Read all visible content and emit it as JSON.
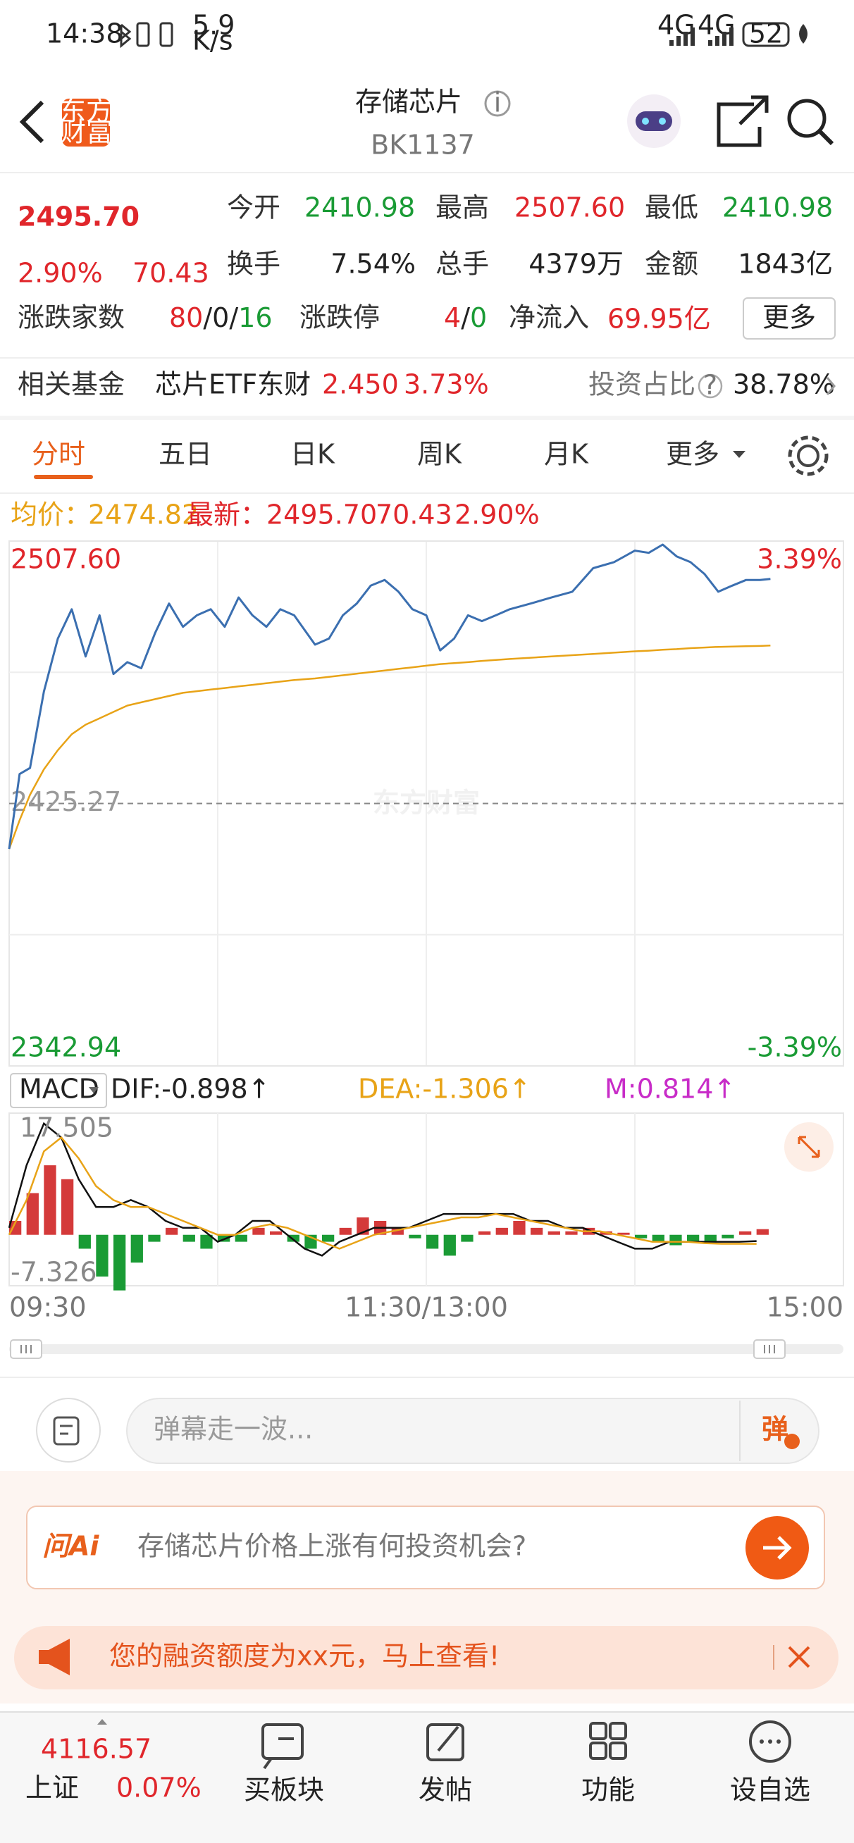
{
  "status_bar": {
    "time": "14:38",
    "net_speed": "5.9",
    "net_unit": "K/s",
    "signal_1": "4G",
    "signal_2": "4G",
    "battery": "52"
  },
  "header": {
    "logo_lines": [
      "东方",
      "财富"
    ],
    "title": "存储芯片",
    "code": "BK1137"
  },
  "quote": {
    "price": "2495.70",
    "change_pct": "2.90%",
    "change": "70.43",
    "fields": [
      {
        "label": "今开",
        "value": "2410.98"
      },
      {
        "label": "最高",
        "value": "2507.60"
      },
      {
        "label": "最低",
        "value": "2410.98"
      },
      {
        "label": "换手",
        "value": "7.54%"
      },
      {
        "label": "总手",
        "value": "4379万"
      },
      {
        "label": "金额",
        "value": "1843亿"
      }
    ],
    "breadth": {
      "label": "涨跌家数",
      "up": "80",
      "flat": "0",
      "down": "16"
    },
    "limit": {
      "label": "涨跌停",
      "up": "4",
      "down": "0"
    },
    "net_inflow": {
      "label": "净流入",
      "value": "69.95亿"
    },
    "more_button": "更多"
  },
  "fund": {
    "label": "相关基金",
    "name": "芯片ETF东财",
    "price": "2.450",
    "change": "3.73%",
    "ratio_label": "投资占比",
    "ratio": "38.78%"
  },
  "tabs": [
    "分时",
    "五日",
    "日K",
    "周K",
    "月K",
    "更多"
  ],
  "info": {
    "avg_label": "均价：",
    "avg": "2474.82",
    "latest_label": "最新：",
    "latest": "2495.70",
    "change": "70.43",
    "change_pct": "2.90%"
  },
  "watermark": "东方财富",
  "macd_header": {
    "selector": "MACD",
    "dif": "DIF:-0.898↑",
    "dea": "DEA:-1.306↑",
    "m": "M:0.814↑"
  },
  "chart_data": [
    {
      "type": "line",
      "x": [
        0,
        3,
        6,
        10,
        14,
        18,
        22,
        26,
        30,
        34,
        38,
        42,
        46,
        50,
        54,
        58,
        62,
        66,
        70,
        74,
        78,
        82,
        88,
        92,
        96,
        100,
        104,
        108,
        112,
        116,
        120,
        124,
        128,
        132,
        136,
        140,
        144,
        150,
        156,
        162,
        168,
        174,
        180,
        184,
        188,
        192,
        196,
        200,
        204,
        208,
        212,
        216,
        219
      ],
      "xlim": [
        0,
        240
      ],
      "xticks": [
        {
          "value": 0,
          "label": "09:30"
        },
        {
          "value": 120,
          "label": "11:30/13:00"
        },
        {
          "value": 240,
          "label": "15:00"
        }
      ],
      "ylim": [
        2342.94,
        2507.6
      ],
      "yticks": [
        2342.94,
        2425.27,
        {
          "value": 2507.6,
          "label": "2507.60"
        }
      ],
      "y2lim": [
        -3.39,
        3.39
      ],
      "y2ticks": [
        {
          "value": -3.39,
          "label": "-3.39%"
        },
        {
          "value": 3.39,
          "label": "3.39%"
        }
      ],
      "up_color": "#e0262b",
      "down_color": "#1a9b35",
      "flat_color": "#999999",
      "series": [
        {
          "color": "#3b6fb0",
          "values": [
            2411.0,
            2434.5,
            2436.4,
            2460.4,
            2477.0,
            2486.2,
            2471.4,
            2484.3,
            2465.9,
            2469.6,
            2467.7,
            2478.8,
            2488.0,
            2480.7,
            2484.3,
            2486.2,
            2480.7,
            2489.9,
            2484.3,
            2480.7,
            2486.2,
            2484.3,
            2475.1,
            2477.0,
            2484.3,
            2488.0,
            2493.6,
            2495.4,
            2491.7,
            2486.2,
            2484.3,
            2473.3,
            2477.0,
            2484.3,
            2482.5,
            2484.3,
            2486.2,
            2488.0,
            2489.9,
            2491.7,
            2499.1,
            2501.0,
            2504.6,
            2503.9,
            2506.5,
            2502.8,
            2501.0,
            2497.3,
            2491.7,
            2493.6,
            2495.4,
            2495.4,
            2495.7
          ]
        },
        {
          "color": "#e8a317",
          "values": [
            2411,
            2420,
            2428,
            2436,
            2442,
            2447,
            2450,
            2452,
            2454,
            2456,
            2457,
            2458,
            2459,
            2460,
            2460.5,
            2461,
            2461.5,
            2462,
            2462.5,
            2463,
            2463.5,
            2464,
            2464.5,
            2465,
            2465.5,
            2466,
            2466.5,
            2467,
            2467.5,
            2468,
            2468.5,
            2469,
            2469.3,
            2469.6,
            2470,
            2470.3,
            2470.6,
            2471,
            2471.4,
            2471.8,
            2472.2,
            2472.6,
            2473,
            2473.2,
            2473.5,
            2473.7,
            2474,
            2474.2,
            2474.4,
            2474.5,
            2474.6,
            2474.7,
            2474.82
          ]
        }
      ]
    },
    {
      "type": "macd",
      "x": [
        0,
        5,
        10,
        15,
        20,
        25,
        30,
        35,
        40,
        45,
        50,
        55,
        60,
        65,
        70,
        75,
        80,
        85,
        90,
        95,
        100,
        105,
        110,
        115,
        120,
        125,
        130,
        135,
        140,
        145,
        150,
        155,
        160,
        165,
        170,
        175,
        180,
        185,
        190,
        195,
        200,
        205,
        210,
        215
      ],
      "xlim": [
        0,
        240
      ],
      "ylim": [
        -7.326,
        17.505
      ],
      "yticks": [
        -7.326,
        17.505
      ],
      "histogram": {
        "up_color": "#d43a3a",
        "down_color": "#1a9b35",
        "values": [
          2,
          6,
          10,
          8,
          -2,
          -6,
          -8,
          -4,
          -1,
          1,
          -1,
          -2,
          -1,
          -1,
          1,
          0.5,
          -1,
          -2,
          -1,
          1,
          2.5,
          2,
          1,
          -0.5,
          -2,
          -3,
          -1,
          0.5,
          1,
          2,
          1,
          0.5,
          0.5,
          1,
          0.5,
          0.3,
          -0.5,
          -1,
          -1.5,
          -1,
          -1,
          -0.5,
          0.5,
          0.814
        ]
      },
      "series": [
        {
          "color": "#111111",
          "values": [
            1,
            10,
            16,
            14,
            8,
            4,
            4,
            5,
            4,
            2,
            1,
            1,
            -1,
            0,
            2,
            2,
            0,
            -2,
            -3,
            -1,
            0,
            1,
            1,
            1,
            2,
            3,
            3,
            3,
            3,
            3,
            2,
            2,
            1,
            1,
            0,
            -1,
            -2,
            -2,
            -1,
            -1,
            -1,
            -1,
            -1,
            -0.898
          ]
        },
        {
          "color": "#e8a317",
          "values": [
            0,
            5,
            12,
            14,
            11,
            7,
            5,
            4,
            4,
            3,
            2,
            1,
            0,
            0,
            1,
            1.5,
            1,
            0,
            -1,
            -2,
            -1,
            0,
            0.5,
            1,
            1.5,
            2,
            2.5,
            2.5,
            3,
            2.5,
            2,
            1.5,
            1,
            0.5,
            0.5,
            0,
            -0.5,
            -1,
            -1,
            -1,
            -1.2,
            -1.3,
            -1.3,
            -1.306
          ]
        }
      ]
    }
  ],
  "danmu": {
    "placeholder": "弹幕走一波...",
    "button": "弹"
  },
  "ai": {
    "logo": "问Ai",
    "prompt": "存储芯片价格上涨有何投资机会?"
  },
  "promo": {
    "text": "您的融资额度为xx元，马上查看!"
  },
  "nav": {
    "index_value": "4116.57",
    "index_name": "上证",
    "index_change": "0.07%",
    "items": [
      "买板块",
      "发帖",
      "功能",
      "设自选"
    ]
  }
}
